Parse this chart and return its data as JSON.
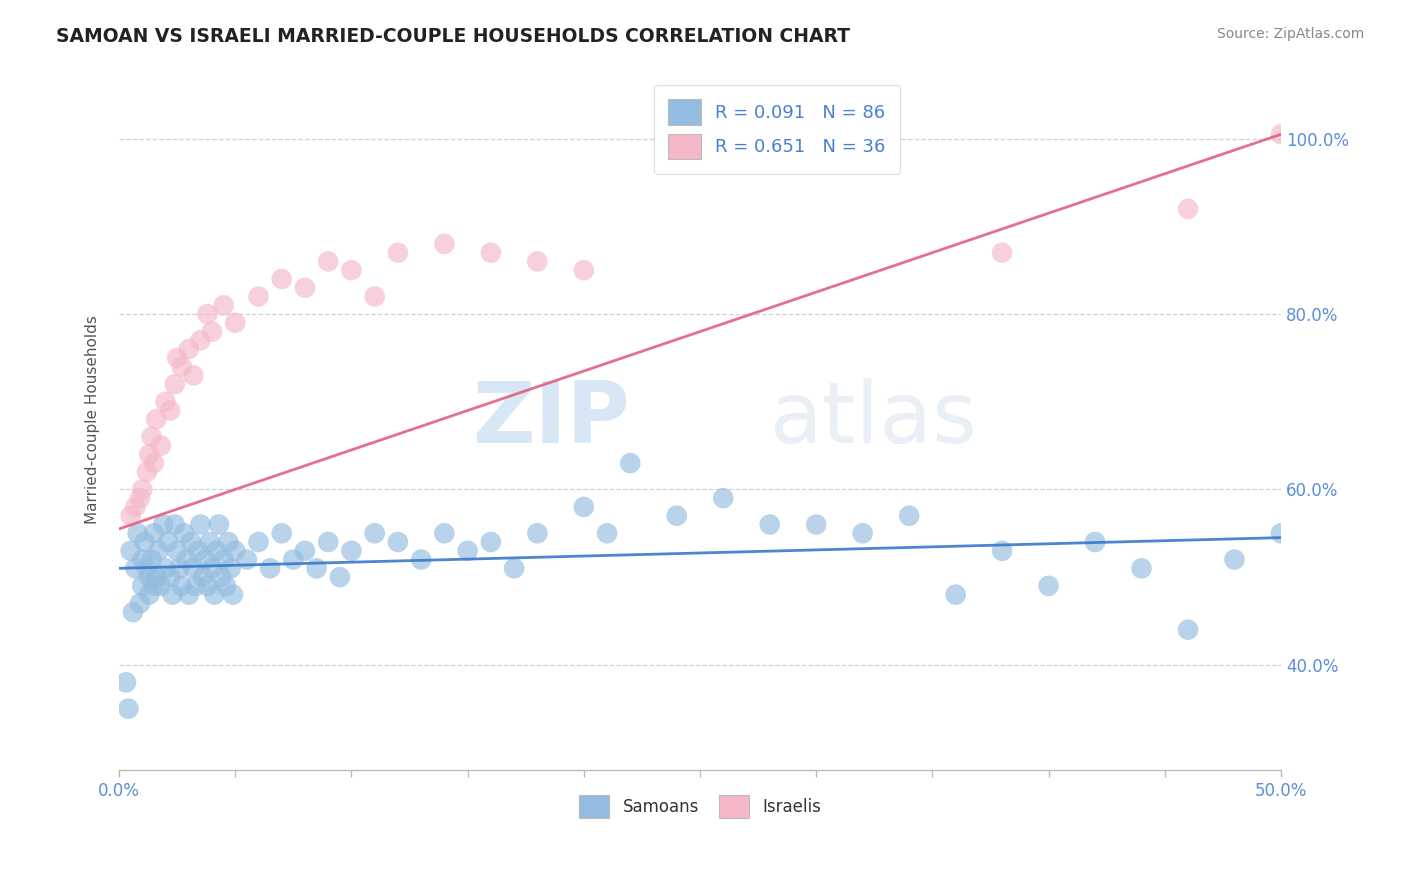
{
  "title": "SAMOAN VS ISRAELI MARRIED-COUPLE HOUSEHOLDS CORRELATION CHART",
  "source": "Source: ZipAtlas.com",
  "ylabel": "Married-couple Households",
  "xlim": [
    0.0,
    0.5
  ],
  "ylim": [
    0.28,
    1.08
  ],
  "watermark_zip": "ZIP",
  "watermark_atlas": "atlas",
  "blue_color": "#92bce0",
  "pink_color": "#f4b8c8",
  "trend_blue_color": "#3a78c9",
  "trend_pink_color": "#e06080",
  "grid_color": "#cccccc",
  "axis_color": "#5b8dd9",
  "legend_label1": "R = 0.091   N = 86",
  "legend_label2": "R = 0.651   N = 36",
  "legend_number_color": "#4a7fd4",
  "legend_text_color": "#333333",
  "samoans_x": [
    0.005,
    0.007,
    0.008,
    0.01,
    0.01,
    0.011,
    0.012,
    0.013,
    0.014,
    0.015,
    0.016,
    0.017,
    0.018,
    0.019,
    0.02,
    0.021,
    0.022,
    0.023,
    0.024,
    0.025,
    0.026,
    0.027,
    0.028,
    0.029,
    0.03,
    0.031,
    0.032,
    0.033,
    0.034,
    0.035,
    0.036,
    0.037,
    0.038,
    0.039,
    0.04,
    0.041,
    0.042,
    0.043,
    0.044,
    0.045,
    0.046,
    0.047,
    0.048,
    0.049,
    0.05,
    0.055,
    0.06,
    0.065,
    0.07,
    0.075,
    0.08,
    0.085,
    0.09,
    0.095,
    0.1,
    0.11,
    0.12,
    0.13,
    0.14,
    0.15,
    0.16,
    0.17,
    0.18,
    0.2,
    0.21,
    0.22,
    0.24,
    0.26,
    0.28,
    0.3,
    0.32,
    0.34,
    0.36,
    0.38,
    0.4,
    0.42,
    0.44,
    0.46,
    0.48,
    0.5,
    0.003,
    0.004,
    0.006,
    0.009,
    0.013,
    0.015
  ],
  "samoans_y": [
    0.53,
    0.51,
    0.55,
    0.52,
    0.49,
    0.54,
    0.51,
    0.48,
    0.52,
    0.55,
    0.5,
    0.53,
    0.49,
    0.56,
    0.51,
    0.54,
    0.5,
    0.48,
    0.56,
    0.53,
    0.51,
    0.49,
    0.55,
    0.52,
    0.48,
    0.54,
    0.51,
    0.49,
    0.53,
    0.56,
    0.5,
    0.52,
    0.49,
    0.54,
    0.51,
    0.48,
    0.53,
    0.56,
    0.5,
    0.52,
    0.49,
    0.54,
    0.51,
    0.48,
    0.53,
    0.52,
    0.54,
    0.51,
    0.55,
    0.52,
    0.53,
    0.51,
    0.54,
    0.5,
    0.53,
    0.55,
    0.54,
    0.52,
    0.55,
    0.53,
    0.54,
    0.51,
    0.55,
    0.58,
    0.55,
    0.63,
    0.57,
    0.59,
    0.56,
    0.56,
    0.55,
    0.57,
    0.48,
    0.53,
    0.49,
    0.54,
    0.51,
    0.44,
    0.52,
    0.55,
    0.38,
    0.35,
    0.46,
    0.47,
    0.5,
    0.49
  ],
  "israelis_x": [
    0.005,
    0.007,
    0.009,
    0.01,
    0.012,
    0.013,
    0.014,
    0.015,
    0.016,
    0.018,
    0.02,
    0.022,
    0.024,
    0.025,
    0.027,
    0.03,
    0.032,
    0.035,
    0.038,
    0.04,
    0.045,
    0.05,
    0.06,
    0.07,
    0.08,
    0.09,
    0.1,
    0.11,
    0.12,
    0.14,
    0.16,
    0.18,
    0.2,
    0.38,
    0.46,
    0.5
  ],
  "israelis_y": [
    0.57,
    0.58,
    0.59,
    0.6,
    0.62,
    0.64,
    0.66,
    0.63,
    0.68,
    0.65,
    0.7,
    0.69,
    0.72,
    0.75,
    0.74,
    0.76,
    0.73,
    0.77,
    0.8,
    0.78,
    0.81,
    0.79,
    0.82,
    0.84,
    0.83,
    0.86,
    0.85,
    0.82,
    0.87,
    0.88,
    0.87,
    0.86,
    0.85,
    0.87,
    0.92,
    1.005
  ],
  "sam_trend_x": [
    0.0,
    0.5
  ],
  "sam_trend_y": [
    0.51,
    0.545
  ],
  "isr_trend_x": [
    0.0,
    0.5
  ],
  "isr_trend_y": [
    0.555,
    1.005
  ]
}
